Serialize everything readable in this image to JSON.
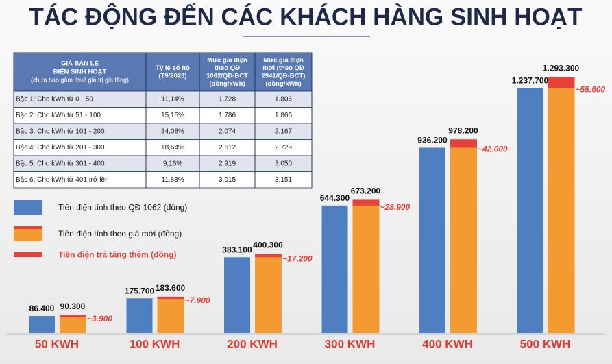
{
  "title": "TÁC ĐỘNG ĐẾN CÁC KHÁCH HÀNG SINH HOẠT",
  "table": {
    "header": [
      [
        "GIÁ BÁN LẺ",
        "ĐIỆN SINH HOẠT",
        "(chưa bao gồm thuế giá trị gia tăng)"
      ],
      [
        "Tỷ lệ số hộ",
        "(T9/2023)"
      ],
      [
        "Mức giá điện",
        "theo QĐ",
        "1062/QĐ-BCT",
        "(đồng/kWh)"
      ],
      [
        "Mức giá điện",
        "mới (theo QĐ",
        "2941/QĐ-BCT)",
        "(đồng/kWh)"
      ]
    ],
    "rows": [
      [
        "Bậc 1: Cho kWh từ 0 - 50",
        "11,14%",
        "1.728",
        "1.806"
      ],
      [
        "Bậc 2: Cho kWh từ 51 - 100",
        "15,15%",
        "1.786",
        "1.866"
      ],
      [
        "Bậc 3: Cho kWh từ 101 - 200",
        "34,08%",
        "2.074",
        "2.167"
      ],
      [
        "Bậc 4: Cho kWh từ 201 - 300",
        "18,64%",
        "2.612",
        "2.729"
      ],
      [
        "Bậc 5: Cho kWh từ 301 - 400",
        "9,16%",
        "2.919",
        "3.050"
      ],
      [
        "Bậc 6: Cho kWh từ 401 trở lên",
        "11,83%",
        "3.015",
        "3.151"
      ]
    ]
  },
  "chart_data": {
    "type": "bar",
    "categories": [
      "50 KWH",
      "100 KWH",
      "200 KWH",
      "300 KWH",
      "400 KWH",
      "500 KWH"
    ],
    "series": [
      {
        "name": "Tiền điện tính theo QĐ 1062 (đồng)",
        "color": "#4f7fc1",
        "values": [
          86400,
          175700,
          383100,
          644300,
          936200,
          1237700
        ],
        "value_labels": [
          "86.400",
          "175.700",
          "383.100",
          "644.300",
          "936.200",
          "1.237.700"
        ]
      },
      {
        "name": "Tiền điện tính theo giá mới (đồng)",
        "color": "#f39a31",
        "values": [
          90300,
          183600,
          400300,
          673200,
          978200,
          1293300
        ],
        "value_labels": [
          "90.300",
          "183.600",
          "400.300",
          "673.200",
          "978.200",
          "1.293.300"
        ]
      },
      {
        "name": "Tiền điện trả tăng thêm (đồng)",
        "color": "#e8413a",
        "values": [
          3900,
          7900,
          17200,
          28900,
          42000,
          55600
        ],
        "value_labels": [
          "~3.900",
          "~7.900",
          "~17.200",
          "~28.900",
          "~42.000",
          "~55.600"
        ]
      }
    ]
  }
}
